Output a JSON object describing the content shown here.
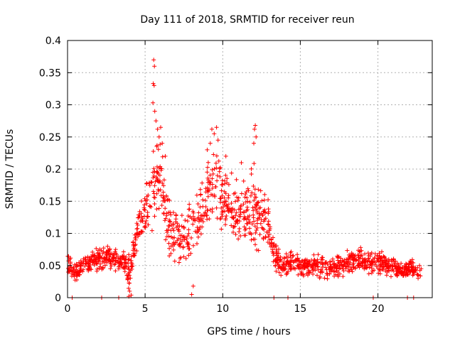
{
  "chart_data": {
    "type": "scatter",
    "title": "Day 111 of 2018, SRMTID for receiver reun",
    "xlabel": "GPS time / hours",
    "ylabel": "SRMTID / TECUs",
    "xlim": [
      0,
      23.5
    ],
    "ylim": [
      0,
      0.4
    ],
    "x_ticks": [
      0,
      5,
      10,
      15,
      20
    ],
    "y_ticks": [
      0,
      0.05,
      0.1,
      0.15,
      0.2,
      0.25,
      0.3,
      0.35,
      0.4
    ],
    "x_tick_labels": [
      "0",
      "5",
      "10",
      "15",
      "20"
    ],
    "y_tick_labels": [
      "0",
      "0.05",
      "0.1",
      "0.15",
      "0.2",
      "0.25",
      "0.3",
      "0.35",
      "0.4"
    ],
    "grid": true,
    "legend": "none",
    "marker": "+",
    "color": "#ff0000",
    "series": [
      {
        "name": "SRMTID",
        "envelope": [
          [
            0.0,
            0.055,
            0.015
          ],
          [
            0.3,
            0.045,
            0.015
          ],
          [
            0.6,
            0.04,
            0.012
          ],
          [
            1.0,
            0.05,
            0.015
          ],
          [
            1.5,
            0.055,
            0.015
          ],
          [
            2.0,
            0.06,
            0.015
          ],
          [
            2.5,
            0.065,
            0.015
          ],
          [
            3.0,
            0.06,
            0.015
          ],
          [
            3.5,
            0.055,
            0.015
          ],
          [
            4.0,
            0.04,
            0.025
          ],
          [
            4.3,
            0.08,
            0.02
          ],
          [
            4.6,
            0.11,
            0.03
          ],
          [
            5.0,
            0.13,
            0.03
          ],
          [
            5.5,
            0.17,
            0.05
          ],
          [
            6.0,
            0.18,
            0.05
          ],
          [
            6.5,
            0.11,
            0.04
          ],
          [
            7.0,
            0.1,
            0.04
          ],
          [
            7.5,
            0.09,
            0.04
          ],
          [
            8.0,
            0.1,
            0.04
          ],
          [
            8.5,
            0.12,
            0.04
          ],
          [
            9.0,
            0.16,
            0.05
          ],
          [
            9.5,
            0.18,
            0.05
          ],
          [
            10.0,
            0.15,
            0.04
          ],
          [
            10.5,
            0.14,
            0.04
          ],
          [
            11.0,
            0.13,
            0.04
          ],
          [
            11.5,
            0.13,
            0.04
          ],
          [
            12.0,
            0.14,
            0.05
          ],
          [
            12.5,
            0.13,
            0.04
          ],
          [
            13.0,
            0.11,
            0.03
          ],
          [
            13.3,
            0.07,
            0.02
          ],
          [
            13.8,
            0.045,
            0.015
          ],
          [
            14.5,
            0.055,
            0.015
          ],
          [
            15.0,
            0.05,
            0.015
          ],
          [
            16.0,
            0.05,
            0.015
          ],
          [
            17.0,
            0.045,
            0.015
          ],
          [
            18.0,
            0.055,
            0.015
          ],
          [
            19.0,
            0.06,
            0.015
          ],
          [
            20.0,
            0.055,
            0.015
          ],
          [
            21.0,
            0.05,
            0.015
          ],
          [
            21.5,
            0.04,
            0.012
          ],
          [
            22.0,
            0.045,
            0.012
          ],
          [
            22.8,
            0.04,
            0.012
          ]
        ],
        "outliers": [
          [
            5.55,
            0.37
          ],
          [
            5.6,
            0.36
          ],
          [
            5.52,
            0.333
          ],
          [
            5.58,
            0.33
          ],
          [
            5.5,
            0.303
          ],
          [
            5.62,
            0.29
          ],
          [
            5.7,
            0.275
          ],
          [
            5.8,
            0.262
          ],
          [
            5.9,
            0.25
          ],
          [
            6.0,
            0.265
          ],
          [
            6.1,
            0.24
          ],
          [
            5.75,
            0.235
          ],
          [
            9.3,
            0.262
          ],
          [
            9.45,
            0.255
          ],
          [
            9.6,
            0.265
          ],
          [
            9.2,
            0.24
          ],
          [
            9.7,
            0.245
          ],
          [
            12.1,
            0.268
          ],
          [
            12.05,
            0.262
          ],
          [
            12.15,
            0.25
          ],
          [
            12.0,
            0.24
          ],
          [
            8.0,
            0.005
          ],
          [
            8.1,
            0.018
          ],
          [
            3.95,
            0.002
          ],
          [
            4.0,
            0.01
          ],
          [
            4.1,
            0.004
          ],
          [
            0.3,
            0.0
          ],
          [
            2.2,
            0.0
          ],
          [
            3.3,
            0.0
          ],
          [
            13.3,
            0.0
          ],
          [
            14.2,
            0.0
          ],
          [
            19.7,
            0.0
          ],
          [
            21.9,
            0.0
          ],
          [
            22.3,
            0.0
          ],
          [
            11.2,
            0.21
          ],
          [
            10.2,
            0.22
          ],
          [
            6.3,
            0.22
          ],
          [
            9.0,
            0.23
          ]
        ],
        "base_points": 1500
      }
    ]
  }
}
